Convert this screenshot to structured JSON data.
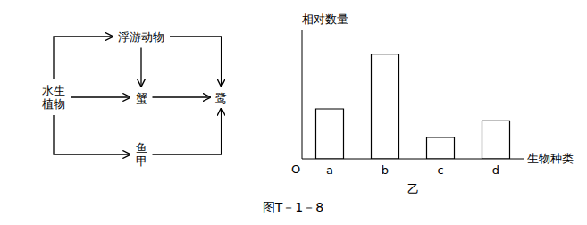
{
  "chart_data": [
    {
      "type": "network",
      "nodes": [
        [
          "水生",
          "植物"
        ],
        [
          "浮游动物"
        ],
        [
          "蟹"
        ],
        [
          "鹭"
        ],
        [
          "鱼",
          "甲"
        ]
      ],
      "edges": [
        [
          0,
          2
        ],
        [
          0,
          1
        ],
        [
          0,
          4
        ],
        [
          1,
          2
        ],
        [
          1,
          3
        ],
        [
          2,
          3
        ],
        [
          4,
          3
        ]
      ]
    },
    {
      "type": "bar",
      "title": "图T－1－8",
      "subtitle": "乙",
      "ylabel": "相对数量",
      "xlabel": "生物种类",
      "annotations": [
        "O"
      ],
      "categories": [
        "a",
        "b",
        "c",
        "d"
      ],
      "values": [
        0.42,
        0.88,
        0.18,
        0.32
      ],
      "color": "#ffffff",
      "ylim": [
        0,
        1.08
      ],
      "tick_labels": "x",
      "grid": false
    }
  ]
}
